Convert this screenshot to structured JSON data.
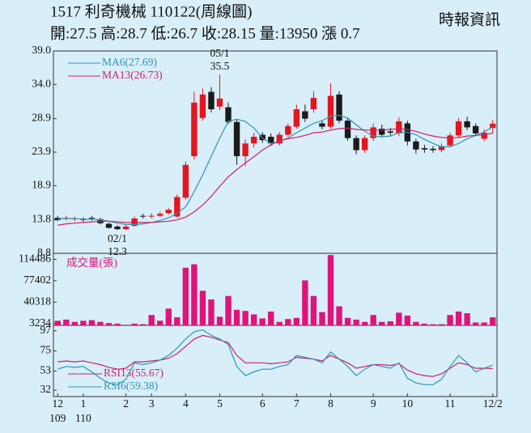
{
  "chart_data": {
    "type": "candlestick",
    "title": "1517  利奇機械 110122(周線圖)",
    "subtitle": "開:27.5 高:28.7 低:26.7 收:28.15 量:13950 漲 0.7",
    "source": "時報資訊",
    "categories": [
      "12\n109",
      null,
      null,
      "1\n110",
      null,
      null,
      null,
      null,
      "2",
      null,
      null,
      "3",
      null,
      null,
      null,
      "4",
      null,
      null,
      null,
      "5",
      null,
      null,
      null,
      null,
      "6",
      null,
      null,
      null,
      "7",
      null,
      null,
      null,
      "8",
      null,
      null,
      null,
      null,
      "9",
      null,
      null,
      null,
      "10",
      null,
      null,
      null,
      null,
      "11",
      null,
      null,
      null,
      null,
      "12/2"
    ],
    "open": [
      14.1,
      14.0,
      13.9,
      13.9,
      14.1,
      13.9,
      13.2,
      12.8,
      12.4,
      12.9,
      14.4,
      14.3,
      14.4,
      14.8,
      14.3,
      17.1,
      23.3,
      29.0,
      32.9,
      30.7,
      30.6,
      28.4,
      23.3,
      25.2,
      26.5,
      26.2,
      25.2,
      26.5,
      27.7,
      30.0,
      30.3,
      28.2,
      27.7,
      32.5,
      28.6,
      26.0,
      24.2,
      26.0,
      27.4,
      27.0,
      26.7,
      28.2,
      25.5,
      24.5,
      24.4,
      24.2,
      24.9,
      26.4,
      28.5,
      27.8,
      25.9,
      27.5
    ],
    "close": [
      13.8,
      14.1,
      14.0,
      13.8,
      14.0,
      13.3,
      12.6,
      12.4,
      12.8,
      14.0,
      14.3,
      14.4,
      14.7,
      15.3,
      17.2,
      22.0,
      31.3,
      32.5,
      30.3,
      31.9,
      28.4,
      23.3,
      25.2,
      26.2,
      25.7,
      25.2,
      26.5,
      27.8,
      30.3,
      28.9,
      32.0,
      27.7,
      32.3,
      28.6,
      26.0,
      24.2,
      26.0,
      27.6,
      26.5,
      26.8,
      28.5,
      25.5,
      24.3,
      24.3,
      24.2,
      24.8,
      26.4,
      28.5,
      27.6,
      26.7,
      26.8,
      28.15
    ],
    "high": [
      14.4,
      14.4,
      14.3,
      14.2,
      14.4,
      14.1,
      13.4,
      13.0,
      13.1,
      14.3,
      14.7,
      14.8,
      15.0,
      15.6,
      17.6,
      22.5,
      32.9,
      33.4,
      33.6,
      35.5,
      31.3,
      28.8,
      25.8,
      26.8,
      26.9,
      26.7,
      26.9,
      28.2,
      31.0,
      31.0,
      33.0,
      28.6,
      34.2,
      33.0,
      29.0,
      26.4,
      26.4,
      28.2,
      28.0,
      27.5,
      29.1,
      28.6,
      25.9,
      25.0,
      24.8,
      25.2,
      26.8,
      29.0,
      29.2,
      28.2,
      27.3,
      28.7
    ],
    "low": [
      13.6,
      13.7,
      13.6,
      13.5,
      13.7,
      13.1,
      12.5,
      12.3,
      12.3,
      12.8,
      14.0,
      14.0,
      14.2,
      14.6,
      14.1,
      16.8,
      22.8,
      28.6,
      29.8,
      30.2,
      28.1,
      22.0,
      21.8,
      24.6,
      25.3,
      24.8,
      24.9,
      26.2,
      27.4,
      28.4,
      29.8,
      27.3,
      27.4,
      28.2,
      25.6,
      23.6,
      23.8,
      25.6,
      26.1,
      26.4,
      26.3,
      24.9,
      23.7,
      23.8,
      23.8,
      23.9,
      24.6,
      26.1,
      27.2,
      26.3,
      25.6,
      26.7
    ],
    "up_color": "#e3161f",
    "down_color": "#1a1a1a",
    "ylim": [
      8.8,
      39.0
    ],
    "yticks": [
      {
        "value": 39,
        "label": "39.0"
      },
      {
        "value": 34,
        "label": "34.0"
      },
      28.9,
      23.9,
      18.9,
      13.8,
      8.8
    ],
    "annotations": [
      {
        "date": "05/1",
        "value": 35.5,
        "kind": "high"
      },
      {
        "date": "02/1",
        "value": 12.3,
        "kind": "low"
      }
    ],
    "lines": [
      {
        "name": "MA6(27.69)",
        "color": "#2f95b6",
        "values": [
          14.0,
          14.0,
          14.0,
          13.9,
          13.9,
          13.8,
          13.6,
          13.3,
          13.1,
          13.1,
          13.2,
          13.4,
          13.7,
          14.1,
          14.8,
          15.7,
          18.0,
          20.5,
          23.3,
          26.0,
          28.5,
          28.8,
          28.5,
          27.5,
          26.0,
          25.2,
          25.5,
          26.0,
          26.8,
          27.5,
          28.2,
          28.6,
          29.3,
          29.4,
          29.0,
          28.0,
          27.0,
          26.3,
          26.2,
          26.3,
          26.8,
          26.9,
          26.5,
          25.8,
          25.2,
          24.7,
          24.7,
          25.2,
          25.9,
          26.4,
          26.9,
          27.69
        ]
      },
      {
        "name": "MA13(26.73)",
        "color": "#cf2065",
        "values": [
          13.0,
          13.2,
          13.3,
          13.4,
          13.5,
          13.6,
          13.6,
          13.5,
          13.4,
          13.4,
          13.4,
          13.4,
          13.5,
          13.6,
          13.8,
          14.2,
          15.0,
          16.0,
          17.3,
          18.8,
          20.2,
          21.3,
          22.3,
          23.2,
          24.2,
          25.0,
          25.6,
          25.9,
          26.1,
          26.4,
          26.8,
          26.9,
          27.2,
          27.4,
          27.5,
          27.3,
          27.2,
          27.2,
          27.2,
          27.3,
          27.4,
          27.3,
          27.0,
          26.6,
          26.3,
          26.1,
          26.0,
          26.1,
          26.3,
          26.4,
          26.5,
          26.73
        ]
      }
    ],
    "volume": {
      "title": "成交量(張)",
      "color": "#e0137a",
      "values": [
        8000,
        10000,
        6000,
        8000,
        9000,
        6000,
        4000,
        3000,
        1000,
        3000,
        2000,
        18000,
        8000,
        29000,
        14000,
        100000,
        106000,
        60000,
        45000,
        15000,
        51000,
        27000,
        25000,
        19000,
        12000,
        24000,
        6000,
        11000,
        13000,
        78000,
        51000,
        23000,
        122000,
        33000,
        13000,
        10000,
        6000,
        18000,
        6000,
        7000,
        22000,
        17000,
        6000,
        3000,
        2000,
        2000,
        18000,
        24000,
        21000,
        5000,
        5000,
        13950
      ],
      "ylim": [
        0,
        125000
      ],
      "yticks": [
        114486,
        77402,
        40318,
        3234
      ]
    },
    "rsi": {
      "ylim": [
        25,
        103
      ],
      "yticks": [
        97,
        75,
        53,
        32
      ],
      "series": [
        {
          "name": "RSI13(55.67)",
          "color": "#cf2065",
          "values": [
            63,
            64,
            63,
            64,
            62,
            60,
            57,
            55,
            56,
            63,
            63,
            64,
            65,
            67,
            72,
            80,
            88,
            92,
            90,
            87,
            84,
            70,
            62,
            62,
            62,
            61,
            62,
            63,
            68,
            67,
            66,
            64,
            70,
            66,
            62,
            56,
            58,
            60,
            60,
            59,
            61,
            54,
            50,
            48,
            47,
            50,
            56,
            62,
            60,
            56,
            56,
            55.67
          ]
        },
        {
          "name": "RSI6(59.38)",
          "color": "#2f95b6",
          "values": [
            55,
            58,
            57,
            58,
            52,
            45,
            40,
            38,
            44,
            62,
            60,
            62,
            65,
            70,
            78,
            88,
            96,
            98,
            92,
            88,
            82,
            58,
            48,
            52,
            55,
            55,
            58,
            60,
            70,
            68,
            66,
            62,
            74,
            66,
            58,
            48,
            55,
            60,
            58,
            56,
            62,
            45,
            40,
            38,
            38,
            44,
            58,
            70,
            62,
            52,
            56,
            59.38
          ]
        }
      ]
    }
  }
}
